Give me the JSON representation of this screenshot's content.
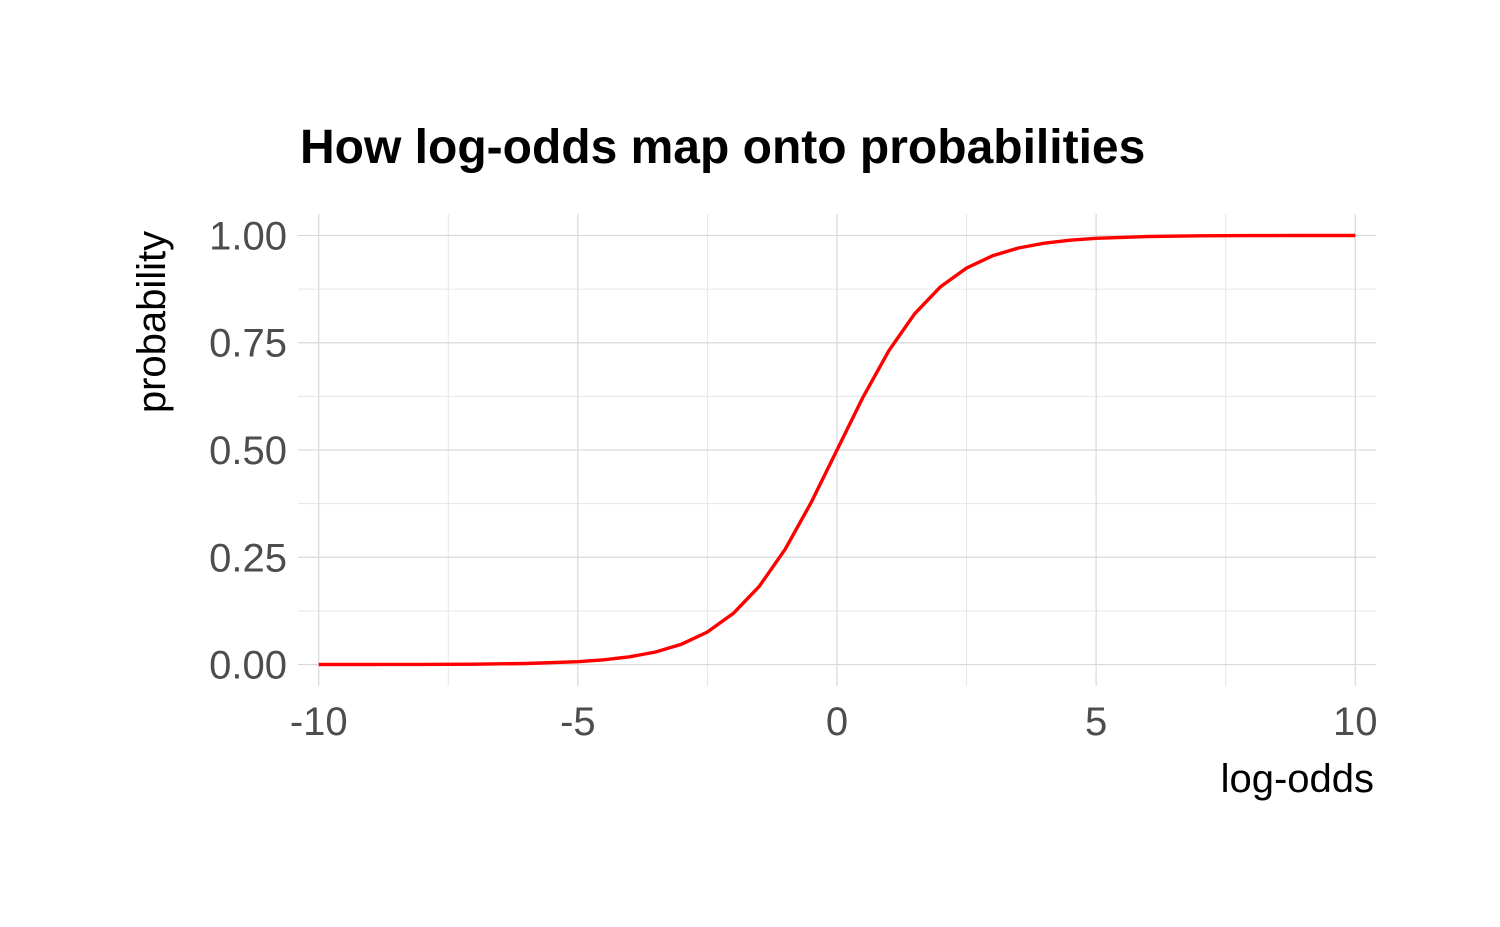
{
  "chart_data": {
    "type": "line",
    "title": "How log-odds map onto probabilities",
    "xlabel": "log-odds",
    "ylabel": "probability",
    "xlim": [
      -10.4,
      10.4
    ],
    "ylim": [
      -0.05,
      1.05
    ],
    "x_ticks": [
      -10,
      -5,
      0,
      5,
      10
    ],
    "x_tick_labels": [
      "-10",
      "-5",
      "0",
      "5",
      "10"
    ],
    "x_minor_ticks": [
      -7.5,
      -2.5,
      2.5,
      7.5
    ],
    "y_ticks": [
      0,
      0.25,
      0.5,
      0.75,
      1
    ],
    "y_tick_labels": [
      "0.00",
      "0.25",
      "0.50",
      "0.75",
      "1.00"
    ],
    "y_minor_ticks": [
      0.125,
      0.375,
      0.625,
      0.875
    ],
    "grid": true,
    "legend": "none",
    "series": [
      {
        "color": "#ff0000",
        "x": [
          -10,
          -9,
          -8,
          -7,
          -6,
          -5,
          -4.5,
          -4,
          -3.5,
          -3,
          -2.5,
          -2,
          -1.5,
          -1,
          -0.5,
          0,
          0.5,
          1,
          1.5,
          2,
          2.5,
          3,
          3.5,
          4,
          4.5,
          5,
          6,
          7,
          8,
          9,
          10
        ],
        "values": [
          0.0,
          0.0001,
          0.0003,
          0.0009,
          0.0025,
          0.0067,
          0.011,
          0.018,
          0.0293,
          0.0474,
          0.0759,
          0.1192,
          0.1824,
          0.2689,
          0.3775,
          0.5,
          0.6225,
          0.7311,
          0.8176,
          0.8808,
          0.9241,
          0.9526,
          0.9707,
          0.982,
          0.989,
          0.9933,
          0.9975,
          0.9991,
          0.9997,
          0.9999,
          1.0
        ]
      }
    ]
  }
}
